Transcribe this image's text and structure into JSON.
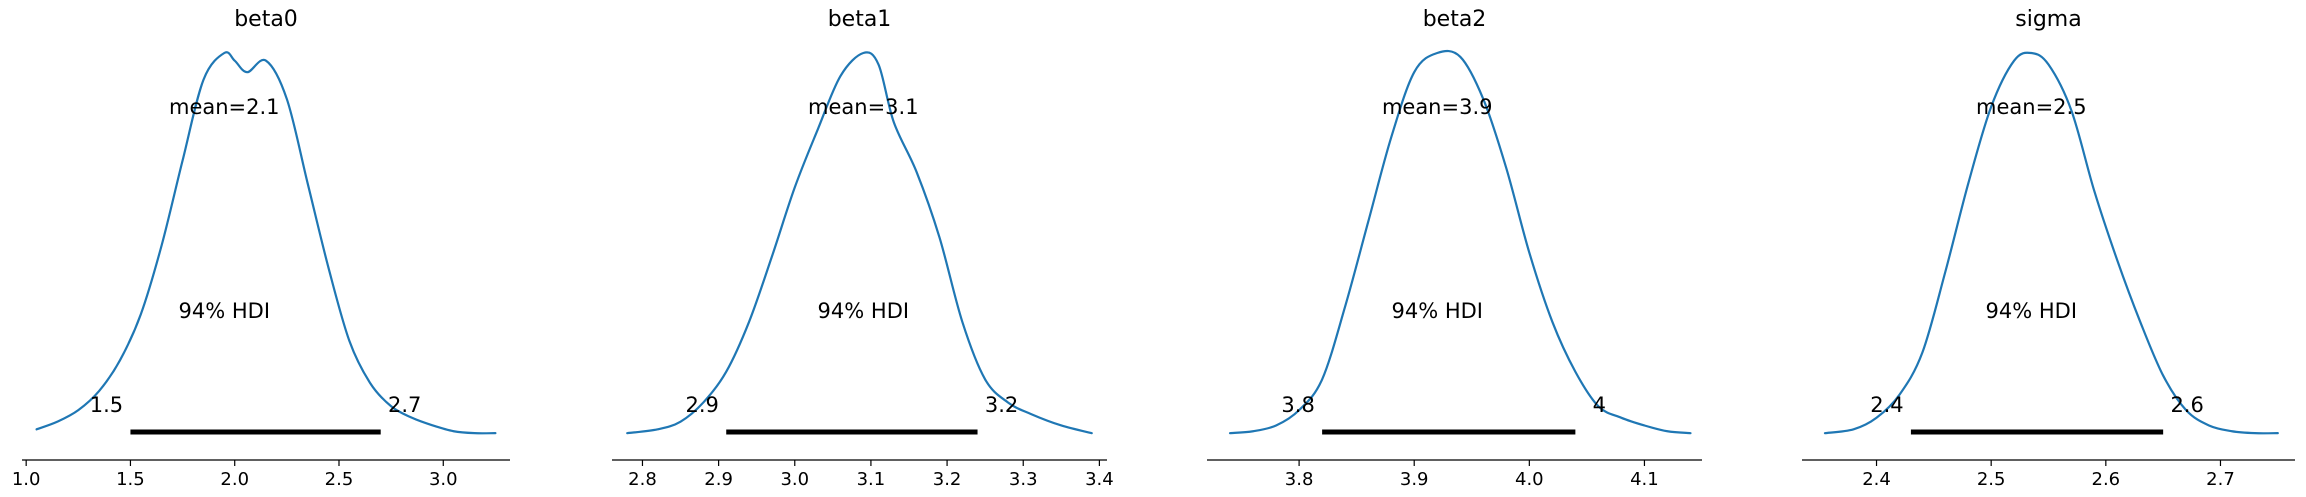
{
  "chart_data": [
    {
      "type": "line",
      "title": "beta0",
      "mean_label": "mean=2.1",
      "hdi_text": "94% HDI",
      "hdi": [
        1.5,
        2.7
      ],
      "hdi_labels": [
        "1.5",
        "2.7"
      ],
      "xlim": [
        0.98,
        3.32
      ],
      "xticks": [
        1.0,
        1.5,
        2.0,
        2.5,
        3.0
      ],
      "xtick_labels": [
        "1.0",
        "1.5",
        "2.0",
        "2.5",
        "3.0"
      ],
      "density": {
        "x": [
          1.05,
          1.15,
          1.25,
          1.35,
          1.45,
          1.55,
          1.65,
          1.75,
          1.85,
          1.95,
          2.0,
          2.06,
          2.15,
          2.25,
          2.35,
          2.45,
          2.55,
          2.65,
          2.75,
          2.85,
          2.95,
          3.05,
          3.15,
          3.25
        ],
        "y": [
          0.02,
          0.04,
          0.07,
          0.12,
          0.2,
          0.32,
          0.5,
          0.72,
          0.93,
          1.0,
          0.98,
          0.95,
          0.98,
          0.88,
          0.66,
          0.44,
          0.25,
          0.14,
          0.08,
          0.05,
          0.03,
          0.015,
          0.01,
          0.01
        ]
      }
    },
    {
      "type": "line",
      "title": "beta1",
      "mean_label": "mean=3.1",
      "hdi_text": "94% HDI",
      "hdi": [
        2.91,
        3.24
      ],
      "hdi_labels": [
        "2.9",
        "3.2"
      ],
      "xlim": [
        2.76,
        3.41
      ],
      "xticks": [
        2.8,
        2.9,
        3.0,
        3.1,
        3.2,
        3.3,
        3.4
      ],
      "xtick_labels": [
        "2.8",
        "2.9",
        "3.0",
        "3.1",
        "3.2",
        "3.3",
        "3.4"
      ],
      "density": {
        "x": [
          2.78,
          2.82,
          2.85,
          2.88,
          2.91,
          2.94,
          2.97,
          3.0,
          3.03,
          3.06,
          3.09,
          3.11,
          3.13,
          3.16,
          3.19,
          3.22,
          3.25,
          3.28,
          3.31,
          3.35,
          3.39
        ],
        "y": [
          0.01,
          0.02,
          0.04,
          0.09,
          0.17,
          0.3,
          0.47,
          0.65,
          0.8,
          0.94,
          1.0,
          0.97,
          0.82,
          0.69,
          0.52,
          0.3,
          0.15,
          0.09,
          0.06,
          0.03,
          0.01
        ]
      }
    },
    {
      "type": "line",
      "title": "beta2",
      "mean_label": "mean=3.9",
      "hdi_text": "94% HDI",
      "hdi": [
        3.82,
        4.04
      ],
      "hdi_labels": [
        "3.8",
        "4"
      ],
      "xlim": [
        3.72,
        4.15
      ],
      "xticks": [
        3.8,
        3.9,
        4.0,
        4.1
      ],
      "xtick_labels": [
        "3.8",
        "3.9",
        "4.0",
        "4.1"
      ],
      "density": {
        "x": [
          3.74,
          3.76,
          3.78,
          3.8,
          3.82,
          3.84,
          3.86,
          3.88,
          3.9,
          3.92,
          3.94,
          3.96,
          3.98,
          4.0,
          4.02,
          4.04,
          4.06,
          4.08,
          4.1,
          4.12,
          4.14
        ],
        "y": [
          0.01,
          0.015,
          0.03,
          0.07,
          0.15,
          0.34,
          0.56,
          0.78,
          0.95,
          1.0,
          0.99,
          0.88,
          0.7,
          0.48,
          0.3,
          0.17,
          0.08,
          0.05,
          0.03,
          0.015,
          0.01
        ]
      }
    },
    {
      "type": "line",
      "title": "sigma",
      "mean_label": "mean=2.5",
      "hdi_text": "94% HDI",
      "hdi": [
        2.43,
        2.65
      ],
      "hdi_labels": [
        "2.4",
        "2.6"
      ],
      "xlim": [
        2.335,
        2.765
      ],
      "xticks": [
        2.4,
        2.5,
        2.6,
        2.7
      ],
      "xtick_labels": [
        "2.4",
        "2.5",
        "2.6",
        "2.7"
      ],
      "density": {
        "x": [
          2.355,
          2.38,
          2.4,
          2.42,
          2.44,
          2.46,
          2.48,
          2.5,
          2.52,
          2.535,
          2.55,
          2.57,
          2.59,
          2.61,
          2.63,
          2.65,
          2.67,
          2.69,
          2.71,
          2.73,
          2.75
        ],
        "y": [
          0.01,
          0.02,
          0.05,
          0.11,
          0.22,
          0.43,
          0.66,
          0.86,
          0.98,
          1.0,
          0.97,
          0.85,
          0.64,
          0.46,
          0.3,
          0.16,
          0.07,
          0.03,
          0.015,
          0.01,
          0.01
        ]
      }
    }
  ],
  "colors": {
    "density_line": "#1f77b4",
    "hdi_bar": "#000000",
    "axis": "#000000"
  }
}
